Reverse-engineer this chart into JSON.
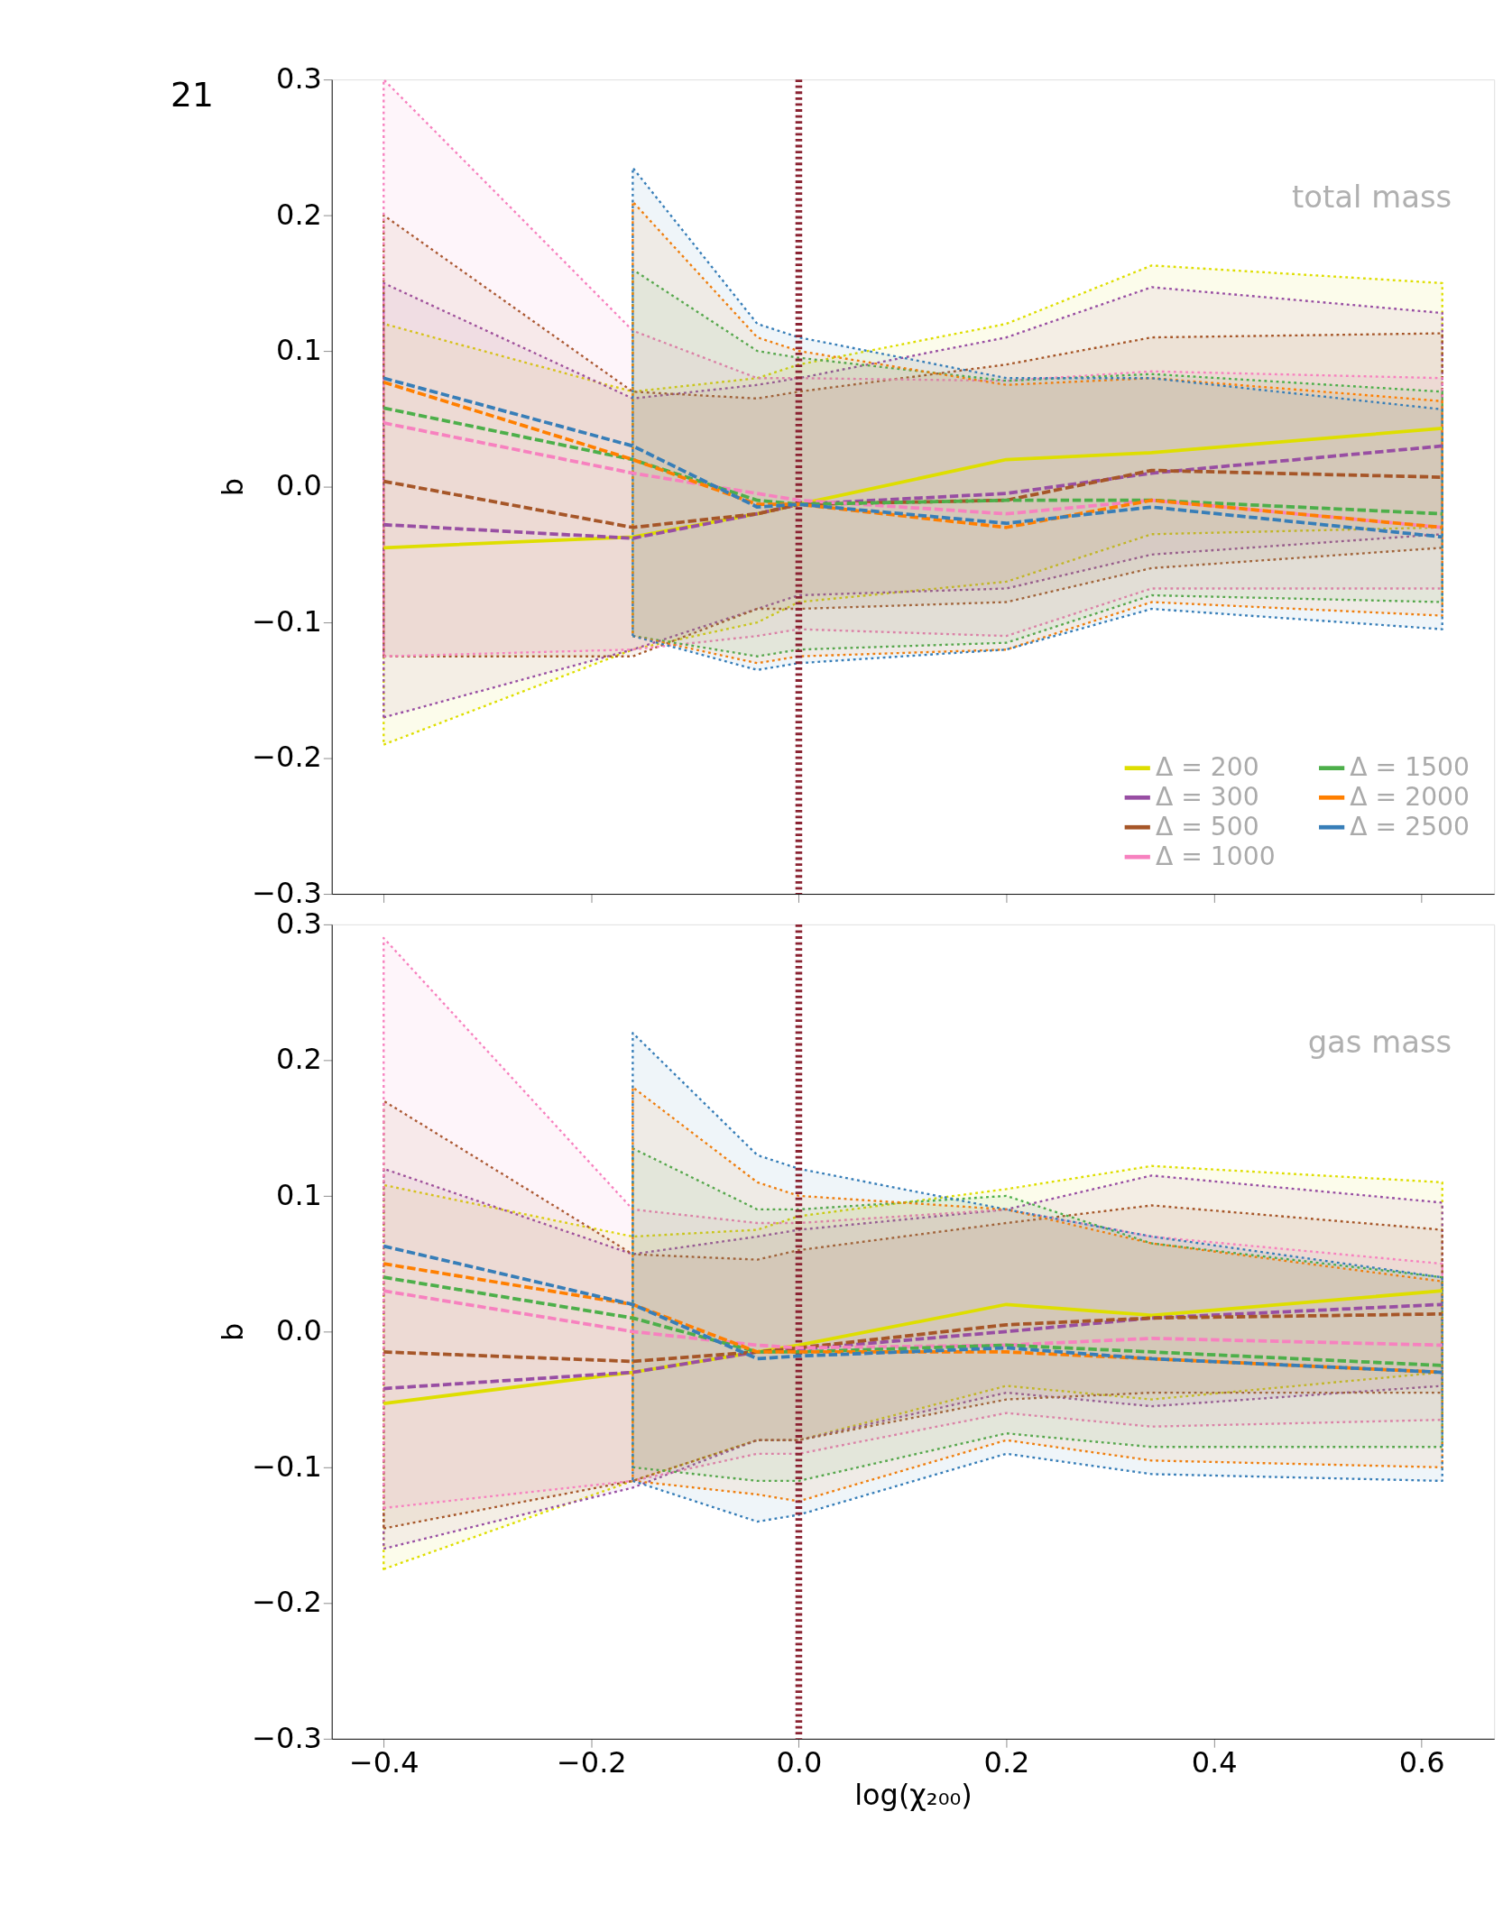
{
  "chart_data": [
    {
      "type": "line",
      "ylabel": "b",
      "xlim": [
        -0.45,
        0.67
      ],
      "ylim": [
        -0.3,
        0.3
      ],
      "xticks": [
        {
          "value": -0.4,
          "label": null
        },
        {
          "value": -0.2,
          "label": null
        },
        {
          "value": 0,
          "label": null
        },
        {
          "value": 0.2,
          "label": null
        },
        {
          "value": 0.4,
          "label": null
        },
        {
          "value": 0.6,
          "label": null
        }
      ],
      "yticks": [
        {
          "value": -0.3,
          "label": "−0.3"
        },
        {
          "value": -0.2,
          "label": "−0.2"
        },
        {
          "value": -0.1,
          "label": "−0.1"
        },
        {
          "value": 0.0,
          "label": "0.0"
        },
        0.1,
        0.2,
        0.3
      ],
      "tick_labels": "y",
      "grid": false,
      "legend": "bottom right",
      "annotations": [
        "21",
        "total mass"
      ],
      "ref_lines": [
        {
          "axis": "x",
          "value": 0.0,
          "color": "#8b2332",
          "line_style": "dotted"
        }
      ],
      "x": [
        -0.4,
        -0.16,
        -0.04,
        0.0,
        0.2,
        0.34,
        0.62
      ],
      "series": [
        {
          "name": "Δ = 200",
          "color": "#dede00",
          "line_style": "solid",
          "values": [
            -0.045,
            -0.037,
            -0.02,
            -0.013,
            0.02,
            0.025,
            0.043
          ],
          "lower": [
            -0.19,
            -0.12,
            -0.1,
            -0.085,
            -0.07,
            -0.035,
            -0.03
          ],
          "upper": [
            0.12,
            0.07,
            0.08,
            0.09,
            0.12,
            0.163,
            0.15
          ]
        },
        {
          "name": "Δ = 300",
          "color": "#984ea3",
          "line_style": "dashed",
          "values": [
            -0.028,
            -0.038,
            -0.02,
            -0.013,
            -0.005,
            0.01,
            0.03
          ],
          "lower": [
            -0.17,
            -0.12,
            -0.09,
            -0.08,
            -0.075,
            -0.05,
            -0.035
          ],
          "upper": [
            0.15,
            0.065,
            0.075,
            0.08,
            0.11,
            0.147,
            0.128
          ]
        },
        {
          "name": "Δ = 500",
          "color": "#a65628",
          "line_style": "dashed",
          "values": [
            0.004,
            -0.03,
            -0.02,
            -0.013,
            -0.01,
            0.012,
            0.007
          ],
          "lower": [
            -0.125,
            -0.125,
            -0.09,
            -0.09,
            -0.085,
            -0.06,
            -0.045
          ],
          "upper": [
            0.2,
            0.07,
            0.065,
            0.07,
            0.09,
            0.11,
            0.113
          ]
        },
        {
          "name": "Δ = 1000",
          "color": "#f781bf",
          "line_style": "dashed",
          "values": [
            0.047,
            0.01,
            -0.005,
            -0.01,
            -0.02,
            -0.01,
            -0.03
          ],
          "lower": [
            -0.125,
            -0.12,
            -0.11,
            -0.105,
            -0.11,
            -0.075,
            -0.075
          ],
          "upper": [
            0.3,
            0.115,
            0.08,
            0.08,
            0.078,
            0.085,
            0.08
          ]
        },
        {
          "name": "Δ = 1500",
          "color": "#4daf4a",
          "line_style": "dashed",
          "values": [
            0.058,
            0.02,
            -0.01,
            -0.013,
            -0.01,
            -0.01,
            -0.02
          ],
          "lower": [
            null,
            -0.11,
            -0.125,
            -0.12,
            -0.115,
            -0.08,
            -0.085
          ],
          "upper": [
            null,
            0.16,
            0.1,
            0.095,
            0.078,
            0.083,
            0.07
          ]
        },
        {
          "name": "Δ = 2000",
          "color": "#ff7f00",
          "line_style": "dashed",
          "values": [
            0.077,
            0.02,
            -0.013,
            -0.013,
            -0.03,
            -0.01,
            -0.03
          ],
          "lower": [
            null,
            -0.11,
            -0.13,
            -0.125,
            -0.12,
            -0.085,
            -0.095
          ],
          "upper": [
            null,
            0.21,
            0.11,
            0.1,
            0.075,
            0.08,
            0.063
          ]
        },
        {
          "name": "Δ = 2500",
          "color": "#377eb8",
          "line_style": "dashed",
          "values": [
            0.08,
            0.03,
            -0.015,
            -0.013,
            -0.027,
            -0.015,
            -0.037
          ],
          "lower": [
            null,
            -0.11,
            -0.135,
            -0.13,
            -0.12,
            -0.09,
            -0.105
          ],
          "upper": [
            null,
            0.235,
            0.12,
            0.11,
            0.08,
            0.08,
            0.057
          ]
        }
      ]
    },
    {
      "type": "line",
      "xlabel": "log(χ₂₀₀)",
      "ylabel": "b",
      "xlim": [
        -0.45,
        0.67
      ],
      "ylim": [
        -0.3,
        0.3
      ],
      "xticks": [
        {
          "value": -0.4,
          "label": "−0.4"
        },
        {
          "value": -0.2,
          "label": "−0.2"
        },
        {
          "value": 0,
          "label": "0.0"
        },
        0.2,
        0.4,
        0.6
      ],
      "yticks": [
        {
          "value": -0.3,
          "label": "−0.3"
        },
        {
          "value": -0.2,
          "label": "−0.2"
        },
        {
          "value": -0.1,
          "label": "−0.1"
        },
        {
          "value": 0.0,
          "label": "0.0"
        },
        0.1,
        0.2,
        0.3
      ],
      "grid": false,
      "annotations": [
        "gas mass"
      ],
      "ref_lines": [
        {
          "axis": "x",
          "value": 0.0,
          "color": "#8b2332",
          "line_style": "dotted"
        }
      ],
      "x": [
        -0.4,
        -0.16,
        -0.04,
        0.0,
        0.2,
        0.34,
        0.62
      ],
      "series": [
        {
          "color": "#dede00",
          "line_style": "solid",
          "values": [
            -0.053,
            -0.03,
            -0.015,
            -0.01,
            0.02,
            0.012,
            0.03
          ],
          "lower": [
            -0.175,
            -0.11,
            -0.08,
            -0.08,
            -0.04,
            -0.05,
            -0.03
          ],
          "upper": [
            0.108,
            0.07,
            0.075,
            0.085,
            0.105,
            0.122,
            0.11
          ]
        },
        {
          "color": "#984ea3",
          "line_style": "dashed",
          "values": [
            -0.042,
            -0.03,
            -0.015,
            -0.013,
            0.0,
            0.01,
            0.02
          ],
          "lower": [
            -0.16,
            -0.115,
            -0.08,
            -0.08,
            -0.045,
            -0.055,
            -0.04
          ],
          "upper": [
            0.12,
            0.057,
            0.07,
            0.075,
            0.09,
            0.115,
            0.095
          ]
        },
        {
          "color": "#a65628",
          "line_style": "dashed",
          "values": [
            -0.015,
            -0.022,
            -0.015,
            -0.012,
            0.005,
            0.01,
            0.013
          ],
          "lower": [
            -0.145,
            -0.11,
            -0.08,
            -0.08,
            -0.05,
            -0.045,
            -0.045
          ],
          "upper": [
            0.17,
            0.057,
            0.053,
            0.06,
            0.08,
            0.093,
            0.075
          ]
        },
        {
          "color": "#f781bf",
          "line_style": "dashed",
          "values": [
            0.03,
            0.0,
            -0.01,
            -0.012,
            -0.01,
            -0.005,
            -0.01
          ],
          "lower": [
            -0.13,
            -0.11,
            -0.09,
            -0.09,
            -0.06,
            -0.07,
            -0.065
          ],
          "upper": [
            0.29,
            0.09,
            0.08,
            0.08,
            0.09,
            0.07,
            0.05
          ]
        },
        {
          "color": "#4daf4a",
          "line_style": "dashed",
          "values": [
            0.04,
            0.01,
            -0.015,
            -0.015,
            -0.01,
            -0.015,
            -0.025
          ],
          "lower": [
            null,
            -0.1,
            -0.11,
            -0.11,
            -0.075,
            -0.085,
            -0.085
          ],
          "upper": [
            null,
            0.135,
            0.09,
            0.09,
            0.1,
            0.065,
            0.04
          ]
        },
        {
          "color": "#ff7f00",
          "line_style": "dashed",
          "values": [
            0.05,
            0.02,
            -0.015,
            -0.015,
            -0.015,
            -0.02,
            -0.03
          ],
          "lower": [
            null,
            -0.11,
            -0.12,
            -0.125,
            -0.08,
            -0.095,
            -0.1
          ],
          "upper": [
            null,
            0.18,
            0.11,
            0.1,
            0.09,
            0.065,
            0.037
          ]
        },
        {
          "color": "#377eb8",
          "line_style": "dashed",
          "values": [
            0.063,
            0.02,
            -0.02,
            -0.018,
            -0.012,
            -0.02,
            -0.03
          ],
          "lower": [
            null,
            -0.11,
            -0.14,
            -0.135,
            -0.09,
            -0.105,
            -0.11
          ],
          "upper": [
            null,
            0.22,
            0.13,
            0.12,
            0.09,
            0.07,
            0.04
          ]
        }
      ]
    }
  ]
}
